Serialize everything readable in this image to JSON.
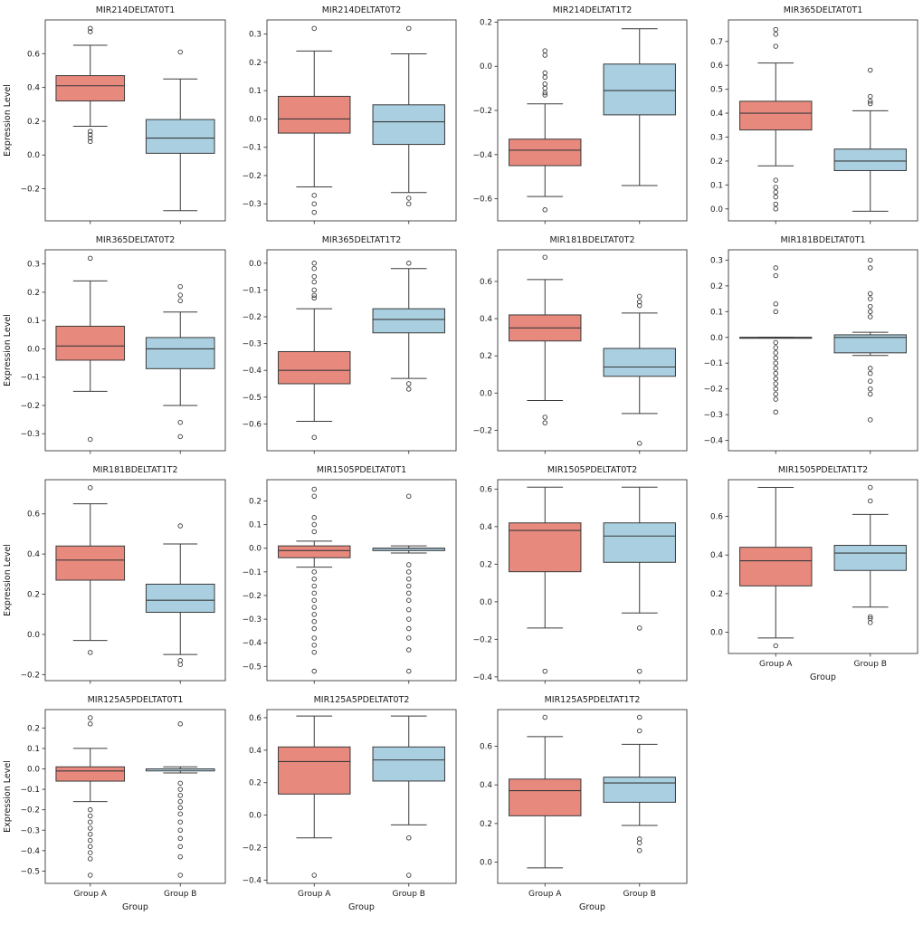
{
  "figure": {
    "ylabel": "Expression Level",
    "xlabel": "Group",
    "group_labels": [
      "Group A",
      "Group B"
    ],
    "colors": {
      "group_a_fill": "#E8897E",
      "group_b_fill": "#A9CFE0",
      "edge": "#3b3b3b",
      "text": "#1a1a1a",
      "background": "#ffffff"
    }
  },
  "chart_data": {
    "type": "box",
    "layout": {
      "rows": 4,
      "cols": 4,
      "legend": "none",
      "grid": false
    },
    "plots": [
      {
        "title": "MIR214DELTAT0T1",
        "ylim": [
          -0.39,
          0.8
        ],
        "yticks": [
          -0.2,
          0.0,
          0.2,
          0.4,
          0.6
        ],
        "show_ylabel": true,
        "show_xticklabels": false,
        "groups": [
          {
            "name": "Group A",
            "whislo": 0.17,
            "q1": 0.32,
            "med": 0.41,
            "q3": 0.47,
            "whishi": 0.65,
            "fliers": [
              0.75,
              0.73,
              0.14,
              0.12,
              0.1,
              0.08
            ]
          },
          {
            "name": "Group B",
            "whislo": -0.33,
            "q1": 0.01,
            "med": 0.1,
            "q3": 0.21,
            "whishi": 0.45,
            "fliers": [
              0.61
            ]
          }
        ]
      },
      {
        "title": "MIR214DELTAT0T2",
        "ylim": [
          -0.36,
          0.35
        ],
        "yticks": [
          -0.3,
          -0.2,
          -0.1,
          0.0,
          0.1,
          0.2,
          0.3
        ],
        "show_ylabel": false,
        "show_xticklabels": false,
        "groups": [
          {
            "name": "Group A",
            "whislo": -0.24,
            "q1": -0.05,
            "med": 0.0,
            "q3": 0.08,
            "whishi": 0.24,
            "fliers": [
              0.32,
              -0.27,
              -0.3,
              -0.33
            ]
          },
          {
            "name": "Group B",
            "whislo": -0.26,
            "q1": -0.09,
            "med": -0.01,
            "q3": 0.05,
            "whishi": 0.23,
            "fliers": [
              0.32,
              -0.28,
              -0.3
            ]
          }
        ]
      },
      {
        "title": "MIR214DELTAT1T2",
        "ylim": [
          -0.7,
          0.21
        ],
        "yticks": [
          -0.6,
          -0.4,
          -0.2,
          0.0,
          0.2
        ],
        "show_ylabel": false,
        "show_xticklabels": false,
        "groups": [
          {
            "name": "Group A",
            "whislo": -0.59,
            "q1": -0.45,
            "med": -0.38,
            "q3": -0.33,
            "whishi": -0.17,
            "fliers": [
              0.07,
              0.05,
              -0.03,
              -0.05,
              -0.08,
              -0.1,
              -0.12,
              -0.13,
              -0.65
            ]
          },
          {
            "name": "Group B",
            "whislo": -0.54,
            "q1": -0.22,
            "med": -0.11,
            "q3": 0.01,
            "whishi": 0.17,
            "fliers": []
          }
        ]
      },
      {
        "title": "MIR365DELTAT0T1",
        "ylim": [
          -0.05,
          0.79
        ],
        "yticks": [
          0.0,
          0.1,
          0.2,
          0.3,
          0.4,
          0.5,
          0.6,
          0.7
        ],
        "show_ylabel": false,
        "show_xticklabels": false,
        "groups": [
          {
            "name": "Group A",
            "whislo": 0.18,
            "q1": 0.33,
            "med": 0.4,
            "q3": 0.45,
            "whishi": 0.61,
            "fliers": [
              0.75,
              0.73,
              0.68,
              0.12,
              0.09,
              0.07,
              0.05,
              0.02,
              0.0
            ]
          },
          {
            "name": "Group B",
            "whislo": -0.01,
            "q1": 0.16,
            "med": 0.2,
            "q3": 0.25,
            "whishi": 0.41,
            "fliers": [
              0.58,
              0.47,
              0.45,
              0.44
            ]
          }
        ]
      },
      {
        "title": "MIR365DELTAT0T2",
        "ylim": [
          -0.36,
          0.35
        ],
        "yticks": [
          -0.3,
          -0.2,
          -0.1,
          0.0,
          0.1,
          0.2,
          0.3
        ],
        "show_ylabel": true,
        "show_xticklabels": false,
        "groups": [
          {
            "name": "Group A",
            "whislo": -0.15,
            "q1": -0.04,
            "med": 0.01,
            "q3": 0.08,
            "whishi": 0.24,
            "fliers": [
              0.32,
              -0.32
            ]
          },
          {
            "name": "Group B",
            "whislo": -0.2,
            "q1": -0.07,
            "med": 0.0,
            "q3": 0.04,
            "whishi": 0.13,
            "fliers": [
              0.22,
              0.19,
              0.17,
              -0.26,
              -0.31
            ]
          }
        ]
      },
      {
        "title": "MIR365DELTAT1T2",
        "ylim": [
          -0.7,
          0.05
        ],
        "yticks": [
          -0.6,
          -0.5,
          -0.4,
          -0.3,
          -0.2,
          -0.1,
          0.0
        ],
        "show_ylabel": false,
        "show_xticklabels": false,
        "groups": [
          {
            "name": "Group A",
            "whislo": -0.59,
            "q1": -0.45,
            "med": -0.4,
            "q3": -0.33,
            "whishi": -0.17,
            "fliers": [
              0.0,
              -0.02,
              -0.05,
              -0.07,
              -0.1,
              -0.12,
              -0.13,
              -0.65
            ]
          },
          {
            "name": "Group B",
            "whislo": -0.43,
            "q1": -0.26,
            "med": -0.21,
            "q3": -0.17,
            "whishi": -0.02,
            "fliers": [
              0.0,
              -0.45,
              -0.47
            ]
          }
        ]
      },
      {
        "title": "MIR181BDELTAT0T2",
        "ylim": [
          -0.31,
          0.77
        ],
        "yticks": [
          -0.2,
          0.0,
          0.2,
          0.4,
          0.6
        ],
        "show_ylabel": false,
        "show_xticklabels": false,
        "groups": [
          {
            "name": "Group A",
            "whislo": -0.04,
            "q1": 0.28,
            "med": 0.35,
            "q3": 0.42,
            "whishi": 0.61,
            "fliers": [
              0.73,
              -0.13,
              -0.16
            ]
          },
          {
            "name": "Group B",
            "whislo": -0.11,
            "q1": 0.09,
            "med": 0.14,
            "q3": 0.24,
            "whishi": 0.43,
            "fliers": [
              0.52,
              0.49,
              0.47,
              -0.27
            ]
          }
        ]
      },
      {
        "title": "MIR181BDELTAT0T1",
        "ylim": [
          -0.44,
          0.34
        ],
        "yticks": [
          -0.4,
          -0.3,
          -0.2,
          -0.1,
          0.0,
          0.1,
          0.2,
          0.3
        ],
        "show_ylabel": false,
        "show_xticklabels": false,
        "groups": [
          {
            "name": "Group A",
            "whislo": 0.0,
            "q1": 0.0,
            "med": 0.0,
            "q3": 0.0,
            "whishi": 0.0,
            "fliers": [
              0.27,
              0.24,
              0.13,
              0.1,
              -0.02,
              -0.04,
              -0.06,
              -0.08,
              -0.1,
              -0.12,
              -0.14,
              -0.16,
              -0.18,
              -0.2,
              -0.22,
              -0.24,
              -0.29
            ]
          },
          {
            "name": "Group B",
            "whislo": -0.07,
            "q1": -0.06,
            "med": 0.0,
            "q3": 0.01,
            "whishi": 0.02,
            "fliers": [
              0.3,
              0.27,
              0.17,
              0.15,
              0.12,
              0.1,
              0.08,
              -0.12,
              -0.14,
              -0.17,
              -0.2,
              -0.22,
              -0.32
            ]
          }
        ]
      },
      {
        "title": "MIR181BDELTAT1T2",
        "ylim": [
          -0.23,
          0.77
        ],
        "yticks": [
          -0.2,
          0.0,
          0.2,
          0.4,
          0.6
        ],
        "show_ylabel": true,
        "show_xticklabels": false,
        "groups": [
          {
            "name": "Group A",
            "whislo": -0.03,
            "q1": 0.27,
            "med": 0.37,
            "q3": 0.44,
            "whishi": 0.65,
            "fliers": [
              0.73,
              -0.09
            ]
          },
          {
            "name": "Group B",
            "whislo": -0.1,
            "q1": 0.11,
            "med": 0.17,
            "q3": 0.25,
            "whishi": 0.45,
            "fliers": [
              0.54,
              -0.13,
              -0.15
            ]
          }
        ]
      },
      {
        "title": "MIR1505PDELTAT0T1",
        "ylim": [
          -0.56,
          0.29
        ],
        "yticks": [
          -0.5,
          -0.4,
          -0.3,
          -0.2,
          -0.1,
          0.0,
          0.1,
          0.2
        ],
        "show_ylabel": false,
        "show_xticklabels": false,
        "groups": [
          {
            "name": "Group A",
            "whislo": -0.08,
            "q1": -0.04,
            "med": -0.01,
            "q3": 0.01,
            "whishi": 0.03,
            "fliers": [
              0.25,
              0.22,
              0.13,
              0.1,
              0.07,
              -0.1,
              -0.13,
              -0.16,
              -0.19,
              -0.22,
              -0.25,
              -0.28,
              -0.31,
              -0.34,
              -0.38,
              -0.41,
              -0.44,
              -0.52
            ]
          },
          {
            "name": "Group B",
            "whislo": -0.02,
            "q1": -0.01,
            "med": 0.0,
            "q3": 0.0,
            "whishi": 0.01,
            "fliers": [
              0.22,
              -0.07,
              -0.1,
              -0.13,
              -0.16,
              -0.19,
              -0.22,
              -0.26,
              -0.3,
              -0.34,
              -0.38,
              -0.43,
              -0.52
            ]
          }
        ]
      },
      {
        "title": "MIR1505PDELTAT0T2",
        "ylim": [
          -0.42,
          0.65
        ],
        "yticks": [
          -0.4,
          -0.2,
          0.0,
          0.2,
          0.4,
          0.6
        ],
        "show_ylabel": false,
        "show_xticklabels": false,
        "groups": [
          {
            "name": "Group A",
            "whislo": -0.14,
            "q1": 0.16,
            "med": 0.38,
            "q3": 0.42,
            "whishi": 0.61,
            "fliers": [
              -0.37
            ]
          },
          {
            "name": "Group B",
            "whislo": -0.06,
            "q1": 0.21,
            "med": 0.35,
            "q3": 0.42,
            "whishi": 0.61,
            "fliers": [
              -0.14,
              -0.37
            ]
          }
        ]
      },
      {
        "title": "MIR1505PDELTAT1T2",
        "ylim": [
          -0.11,
          0.79
        ],
        "yticks": [
          0.0,
          0.2,
          0.4,
          0.6
        ],
        "show_ylabel": false,
        "show_xticklabels": true,
        "groups": [
          {
            "name": "Group A",
            "whislo": -0.03,
            "q1": 0.24,
            "med": 0.37,
            "q3": 0.44,
            "whishi": 0.75,
            "fliers": [
              -0.07
            ]
          },
          {
            "name": "Group B",
            "whislo": 0.13,
            "q1": 0.32,
            "med": 0.41,
            "q3": 0.45,
            "whishi": 0.61,
            "fliers": [
              0.75,
              0.68,
              0.08,
              0.07,
              0.05
            ]
          }
        ]
      },
      {
        "title": "MIR125A5PDELTAT0T1",
        "ylim": [
          -0.56,
          0.29
        ],
        "yticks": [
          -0.5,
          -0.4,
          -0.3,
          -0.2,
          -0.1,
          0.0,
          0.1,
          0.2
        ],
        "show_ylabel": true,
        "show_xticklabels": true,
        "groups": [
          {
            "name": "Group A",
            "whislo": -0.16,
            "q1": -0.06,
            "med": -0.01,
            "q3": 0.01,
            "whishi": 0.1,
            "fliers": [
              0.25,
              0.22,
              -0.2,
              -0.23,
              -0.26,
              -0.29,
              -0.32,
              -0.35,
              -0.38,
              -0.41,
              -0.44,
              -0.52
            ]
          },
          {
            "name": "Group B",
            "whislo": -0.02,
            "q1": -0.01,
            "med": 0.0,
            "q3": 0.0,
            "whishi": 0.01,
            "fliers": [
              0.22,
              -0.07,
              -0.1,
              -0.13,
              -0.16,
              -0.19,
              -0.22,
              -0.26,
              -0.3,
              -0.34,
              -0.38,
              -0.43,
              -0.52
            ]
          }
        ]
      },
      {
        "title": "MIR125A5PDELTAT0T2",
        "ylim": [
          -0.42,
          0.65
        ],
        "yticks": [
          -0.4,
          -0.2,
          0.0,
          0.2,
          0.4,
          0.6
        ],
        "show_ylabel": false,
        "show_xticklabels": true,
        "groups": [
          {
            "name": "Group A",
            "whislo": -0.14,
            "q1": 0.13,
            "med": 0.33,
            "q3": 0.42,
            "whishi": 0.61,
            "fliers": [
              -0.37
            ]
          },
          {
            "name": "Group B",
            "whislo": -0.06,
            "q1": 0.21,
            "med": 0.34,
            "q3": 0.42,
            "whishi": 0.61,
            "fliers": [
              -0.14,
              -0.37
            ]
          }
        ]
      },
      {
        "title": "MIR125A5PDELTAT1T2",
        "ylim": [
          -0.11,
          0.79
        ],
        "yticks": [
          0.0,
          0.2,
          0.4,
          0.6
        ],
        "show_ylabel": false,
        "show_xticklabels": true,
        "groups": [
          {
            "name": "Group A",
            "whislo": -0.03,
            "q1": 0.24,
            "med": 0.37,
            "q3": 0.43,
            "whishi": 0.65,
            "fliers": [
              0.75
            ]
          },
          {
            "name": "Group B",
            "whislo": 0.19,
            "q1": 0.31,
            "med": 0.41,
            "q3": 0.44,
            "whishi": 0.61,
            "fliers": [
              0.75,
              0.68,
              0.12,
              0.1,
              0.06
            ]
          }
        ]
      }
    ]
  }
}
